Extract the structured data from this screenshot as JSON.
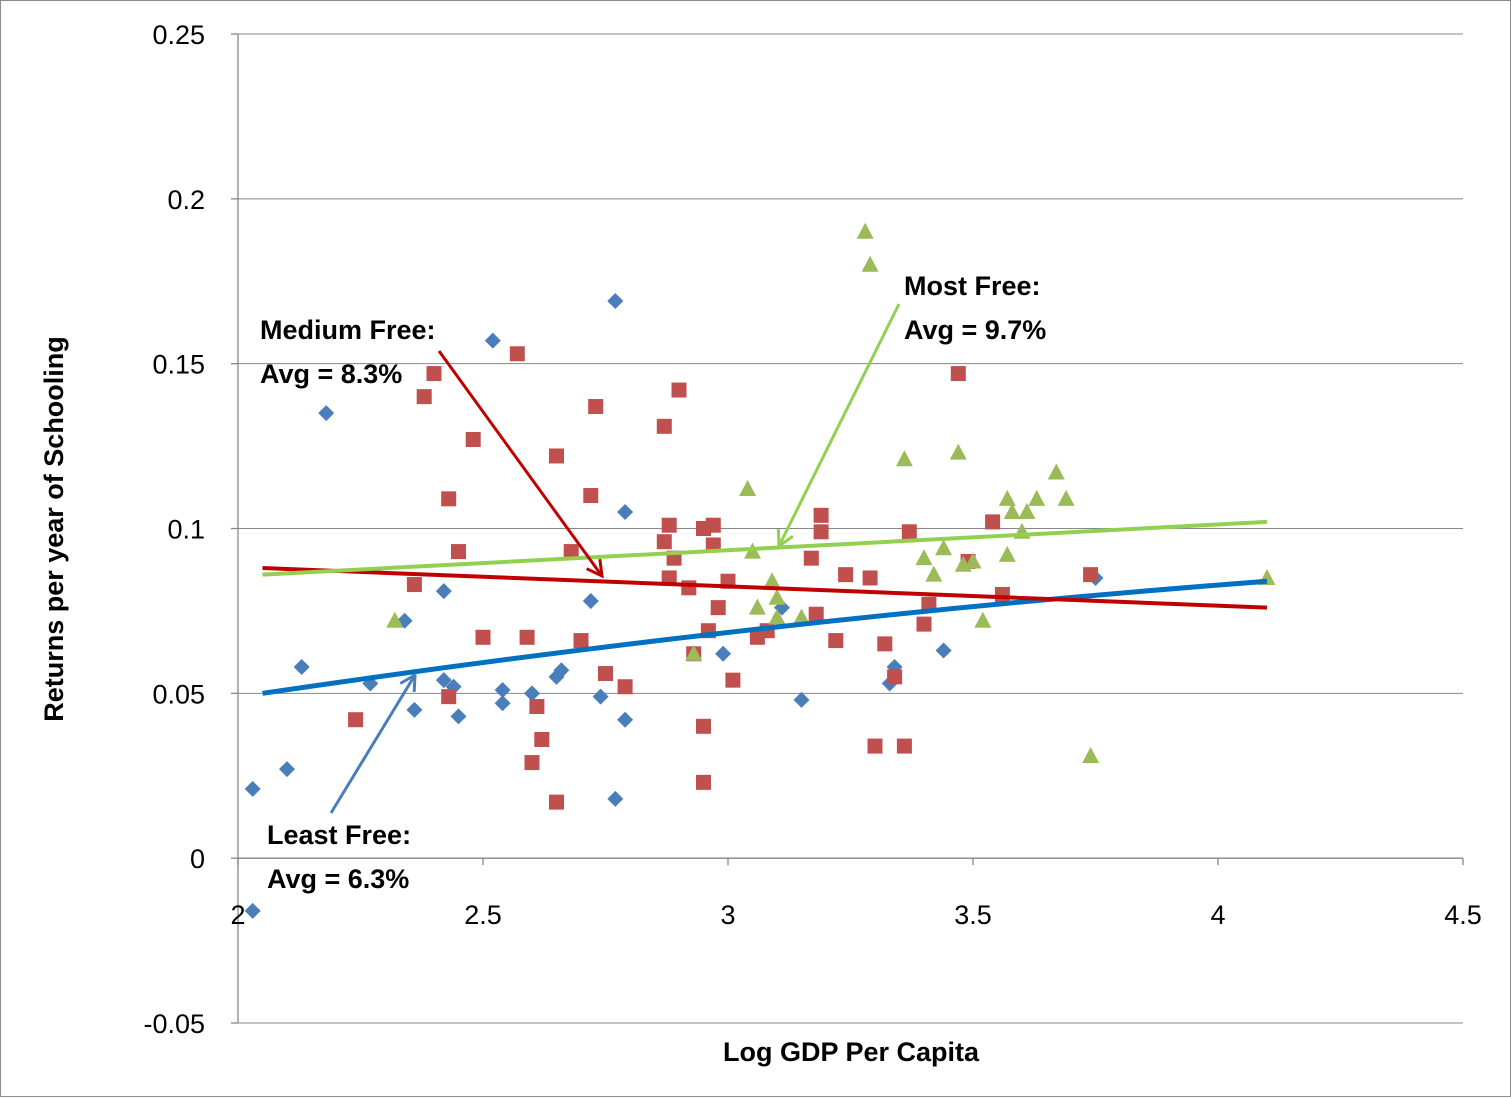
{
  "chart_data": {
    "type": "scatter",
    "xlabel": "Log GDP  Per Capita",
    "ylabel": "Returns per year of Schooling",
    "xlim": [
      2,
      4.5
    ],
    "ylim": [
      -0.05,
      0.25
    ],
    "x_ticks": [
      "2",
      "2.5",
      "3",
      "3.5",
      "4",
      "4.5"
    ],
    "y_ticks": [
      "-0.05",
      "0",
      "0.05",
      "0.1",
      "0.15",
      "0.2",
      "0.25"
    ],
    "grid": "horizontal",
    "colors": {
      "least": "#4a7ebb",
      "medium": "#c0504d",
      "most": "#9bbb59",
      "least_trend": "#0070c0",
      "medium_trend": "#c00000",
      "most_trend": "#92d050"
    },
    "series": [
      {
        "id": "least",
        "marker": "diamond",
        "points": [
          [
            2.03,
            0.021
          ],
          [
            2.1,
            0.027
          ],
          [
            2.18,
            0.135
          ],
          [
            2.13,
            0.058
          ],
          [
            2.27,
            0.053
          ],
          [
            2.34,
            0.072
          ],
          [
            2.36,
            0.045
          ],
          [
            2.42,
            0.081
          ],
          [
            2.42,
            0.054
          ],
          [
            2.44,
            0.052
          ],
          [
            2.45,
            0.043
          ],
          [
            2.52,
            0.157
          ],
          [
            2.54,
            0.051
          ],
          [
            2.54,
            0.047
          ],
          [
            2.6,
            0.05
          ],
          [
            2.65,
            0.055
          ],
          [
            2.66,
            0.057
          ],
          [
            2.72,
            0.078
          ],
          [
            2.74,
            0.049
          ],
          [
            2.77,
            0.169
          ],
          [
            2.77,
            0.018
          ],
          [
            2.79,
            0.105
          ],
          [
            2.79,
            0.042
          ],
          [
            2.99,
            0.062
          ],
          [
            3.11,
            0.076
          ],
          [
            3.15,
            0.048
          ],
          [
            3.33,
            0.053
          ],
          [
            3.34,
            0.058
          ],
          [
            3.44,
            0.063
          ],
          [
            3.75,
            0.085
          ],
          [
            2.03,
            -0.016
          ]
        ]
      },
      {
        "id": "medium",
        "marker": "square",
        "points": [
          [
            2.24,
            0.042
          ],
          [
            2.36,
            0.083
          ],
          [
            2.38,
            0.14
          ],
          [
            2.4,
            0.147
          ],
          [
            2.43,
            0.109
          ],
          [
            2.43,
            0.049
          ],
          [
            2.45,
            0.093
          ],
          [
            2.48,
            0.127
          ],
          [
            2.5,
            0.067
          ],
          [
            2.57,
            0.153
          ],
          [
            2.59,
            0.067
          ],
          [
            2.6,
            0.029
          ],
          [
            2.61,
            0.046
          ],
          [
            2.62,
            0.036
          ],
          [
            2.65,
            0.122
          ],
          [
            2.65,
            0.017
          ],
          [
            2.68,
            0.093
          ],
          [
            2.7,
            0.066
          ],
          [
            2.72,
            0.11
          ],
          [
            2.73,
            0.137
          ],
          [
            2.75,
            0.056
          ],
          [
            2.79,
            0.052
          ],
          [
            2.87,
            0.131
          ],
          [
            2.87,
            0.096
          ],
          [
            2.88,
            0.101
          ],
          [
            2.88,
            0.085
          ],
          [
            2.89,
            0.091
          ],
          [
            2.9,
            0.142
          ],
          [
            2.92,
            0.082
          ],
          [
            2.93,
            0.062
          ],
          [
            2.95,
            0.1
          ],
          [
            2.95,
            0.04
          ],
          [
            2.95,
            0.023
          ],
          [
            2.96,
            0.069
          ],
          [
            2.97,
            0.101
          ],
          [
            2.97,
            0.095
          ],
          [
            2.98,
            0.076
          ],
          [
            3.0,
            0.084
          ],
          [
            3.01,
            0.054
          ],
          [
            3.06,
            0.067
          ],
          [
            3.08,
            0.069
          ],
          [
            3.17,
            0.091
          ],
          [
            3.18,
            0.074
          ],
          [
            3.19,
            0.104
          ],
          [
            3.19,
            0.099
          ],
          [
            3.22,
            0.066
          ],
          [
            3.24,
            0.086
          ],
          [
            3.29,
            0.085
          ],
          [
            3.3,
            0.034
          ],
          [
            3.32,
            0.065
          ],
          [
            3.34,
            0.055
          ],
          [
            3.36,
            0.034
          ],
          [
            3.37,
            0.099
          ],
          [
            3.4,
            0.071
          ],
          [
            3.41,
            0.077
          ],
          [
            3.47,
            0.147
          ],
          [
            3.49,
            0.09
          ],
          [
            3.54,
            0.102
          ],
          [
            3.56,
            0.08
          ],
          [
            3.74,
            0.086
          ]
        ]
      },
      {
        "id": "most",
        "marker": "triangle",
        "points": [
          [
            2.32,
            0.072
          ],
          [
            2.93,
            0.062
          ],
          [
            3.04,
            0.112
          ],
          [
            3.05,
            0.093
          ],
          [
            3.06,
            0.076
          ],
          [
            3.09,
            0.084
          ],
          [
            3.1,
            0.079
          ],
          [
            3.1,
            0.073
          ],
          [
            3.15,
            0.073
          ],
          [
            3.28,
            0.19
          ],
          [
            3.29,
            0.18
          ],
          [
            3.36,
            0.121
          ],
          [
            3.4,
            0.091
          ],
          [
            3.42,
            0.086
          ],
          [
            3.44,
            0.094
          ],
          [
            3.47,
            0.123
          ],
          [
            3.48,
            0.089
          ],
          [
            3.5,
            0.09
          ],
          [
            3.52,
            0.072
          ],
          [
            3.57,
            0.092
          ],
          [
            3.57,
            0.109
          ],
          [
            3.58,
            0.105
          ],
          [
            3.6,
            0.099
          ],
          [
            3.61,
            0.105
          ],
          [
            3.63,
            0.109
          ],
          [
            3.67,
            0.117
          ],
          [
            3.69,
            0.109
          ],
          [
            3.74,
            0.031
          ],
          [
            4.1,
            0.085
          ]
        ]
      }
    ],
    "trendlines": [
      {
        "id": "least",
        "from": [
          2.05,
          0.05
        ],
        "to": [
          4.1,
          0.084
        ],
        "curved": true
      },
      {
        "id": "medium",
        "from": [
          2.05,
          0.088
        ],
        "to": [
          4.1,
          0.076
        ]
      },
      {
        "id": "most",
        "from": [
          2.05,
          0.086
        ],
        "to": [
          4.1,
          0.102
        ]
      }
    ],
    "annotations": [
      {
        "id": "medium",
        "line1": "Medium Free:",
        "line2": "Avg = 8.3%",
        "color": "#c00000"
      },
      {
        "id": "most",
        "line1": "Most Free:",
        "line2": "Avg = 9.7%",
        "color": "#92d050"
      },
      {
        "id": "least",
        "line1": "Least Free:",
        "line2": "Avg = 6.3%",
        "color": "#0070c0"
      }
    ]
  }
}
